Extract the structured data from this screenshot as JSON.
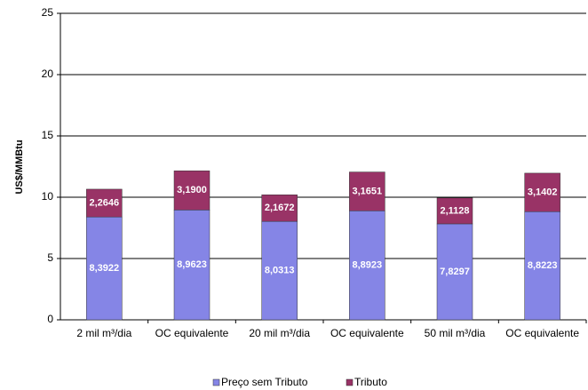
{
  "chart_data": {
    "type": "stacked_bar",
    "y_label": "US$/MMBtu",
    "categories": [
      "2 mil m³/dia",
      "OC equivalente",
      "20 mil m³/dia",
      "OC equivalente",
      "50 mil m³/dia",
      "OC equivalente"
    ],
    "series": [
      {
        "name": "Preço sem Tributo",
        "color": "#8585e6",
        "values": [
          8.3922,
          8.9623,
          8.0313,
          8.8923,
          7.8297,
          8.8223
        ],
        "value_labels": [
          "8,3922",
          "8,9623",
          "8,0313",
          "8,8923",
          "7,8297",
          "8,8223"
        ]
      },
      {
        "name": "Tributo",
        "color": "#993366",
        "values": [
          2.2646,
          3.19,
          2.1672,
          3.1651,
          2.1128,
          3.1402
        ],
        "value_labels": [
          "2,2646",
          "3,1900",
          "2,1672",
          "3,1651",
          "2,1128",
          "3,1402"
        ]
      }
    ],
    "ylim": [
      0,
      25
    ],
    "yticks": [
      0,
      5,
      10,
      15,
      20,
      25
    ],
    "grid": true,
    "legend": "bottom"
  }
}
